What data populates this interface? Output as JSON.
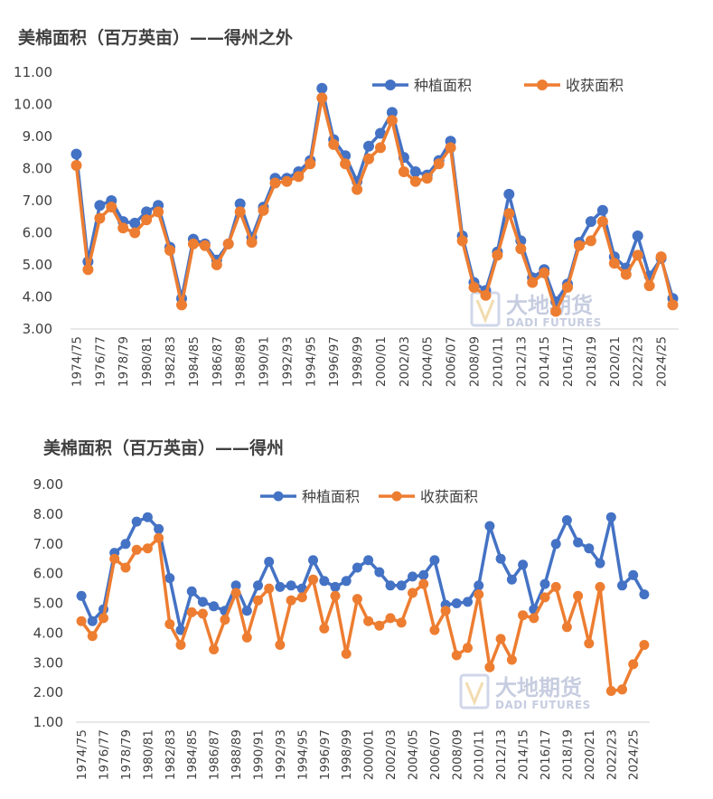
{
  "watermark": {
    "name": "大地期货",
    "sub": "DADI FUTURES"
  },
  "chart_data": [
    {
      "type": "line",
      "title": "美棉面积（百万英亩）——得州之外",
      "ylim": [
        3,
        11
      ],
      "yticks": [
        "3.00",
        "4.00",
        "5.00",
        "6.00",
        "7.00",
        "8.00",
        "9.00",
        "10.00",
        "11.00"
      ],
      "x_tick_labels": [
        "1974/75",
        "1976/77",
        "1978/79",
        "1980/81",
        "1982/83",
        "1984/85",
        "1986/87",
        "1988/89",
        "1990/91",
        "1992/93",
        "1994/95",
        "1996/97",
        "1998/99",
        "2000/01",
        "2002/03",
        "2004/05",
        "2006/07",
        "2008/09",
        "2010/11",
        "2012/13",
        "2014/15",
        "2016/17",
        "2018/19",
        "2020/21",
        "2022/23",
        "2024/25"
      ],
      "legend_position": "top-right",
      "series": [
        {
          "name": "种植面积",
          "color": "#4472C4",
          "values": [
            8.45,
            5.1,
            6.85,
            7.0,
            6.35,
            6.3,
            6.65,
            6.85,
            5.55,
            3.95,
            5.8,
            5.65,
            5.15,
            5.65,
            6.9,
            5.85,
            6.8,
            7.7,
            7.7,
            7.9,
            8.25,
            10.5,
            8.9,
            8.4,
            7.6,
            8.7,
            9.1,
            9.75,
            8.35,
            7.9,
            7.8,
            8.25,
            8.85,
            5.9,
            4.45,
            4.2,
            5.4,
            7.2,
            5.75,
            4.6,
            4.85,
            3.85,
            4.4,
            5.7,
            6.35,
            6.7,
            5.25,
            4.9,
            5.9,
            4.65,
            5.2,
            3.95
          ]
        },
        {
          "name": "收获面积",
          "color": "#ED7D31",
          "values": [
            8.1,
            4.85,
            6.45,
            6.8,
            6.15,
            6.0,
            6.4,
            6.65,
            5.45,
            3.75,
            5.65,
            5.6,
            5.0,
            5.65,
            6.65,
            5.7,
            6.7,
            7.55,
            7.6,
            7.75,
            8.15,
            10.2,
            8.75,
            8.15,
            7.35,
            8.3,
            8.65,
            9.5,
            7.9,
            7.6,
            7.7,
            8.15,
            8.65,
            5.75,
            4.3,
            4.05,
            5.3,
            6.6,
            5.5,
            4.45,
            4.75,
            3.55,
            4.3,
            5.6,
            5.75,
            6.35,
            5.05,
            4.7,
            5.3,
            4.35,
            5.25,
            3.75
          ]
        }
      ]
    },
    {
      "type": "line",
      "title": "美棉面积（百万英亩）——得州",
      "ylim": [
        1,
        9
      ],
      "yticks": [
        "1.00",
        "2.00",
        "3.00",
        "4.00",
        "5.00",
        "6.00",
        "7.00",
        "8.00",
        "9.00"
      ],
      "x_tick_labels": [
        "1974/75",
        "1976/77",
        "1978/79",
        "1980/81",
        "1982/83",
        "1984/85",
        "1986/87",
        "1988/89",
        "1990/91",
        "1992/93",
        "1994/95",
        "1996/97",
        "1998/99",
        "2000/01",
        "2002/03",
        "2004/05",
        "2006/07",
        "2008/09",
        "2010/11",
        "2012/13",
        "2014/15",
        "2016/17",
        "2018/19",
        "2020/21",
        "2022/23",
        "2024/25"
      ],
      "legend_position": "top-center",
      "series": [
        {
          "name": "种植面积",
          "color": "#4472C4",
          "values": [
            5.25,
            4.4,
            4.8,
            6.7,
            7.0,
            7.75,
            7.9,
            7.5,
            5.85,
            4.1,
            5.4,
            5.05,
            4.9,
            4.75,
            5.6,
            4.75,
            5.6,
            6.4,
            5.55,
            5.6,
            5.5,
            6.45,
            5.75,
            5.55,
            5.75,
            6.2,
            6.45,
            6.05,
            5.6,
            5.6,
            5.9,
            5.95,
            6.45,
            4.95,
            5.0,
            5.05,
            5.6,
            7.6,
            6.5,
            5.8,
            6.3,
            4.8,
            5.65,
            7.0,
            7.8,
            7.05,
            6.85,
            6.35,
            7.9,
            5.6,
            5.95,
            5.3
          ]
        },
        {
          "name": "收获面积",
          "color": "#ED7D31",
          "values": [
            4.4,
            3.9,
            4.5,
            6.5,
            6.2,
            6.8,
            6.85,
            7.2,
            4.3,
            3.6,
            4.7,
            4.65,
            3.45,
            4.45,
            5.35,
            3.85,
            5.1,
            5.5,
            3.6,
            5.1,
            5.2,
            5.8,
            4.15,
            5.25,
            3.3,
            5.15,
            4.4,
            4.25,
            4.5,
            4.35,
            5.35,
            5.65,
            4.1,
            4.75,
            3.25,
            3.5,
            5.3,
            2.85,
            3.8,
            3.1,
            4.6,
            4.5,
            5.2,
            5.55,
            4.2,
            5.25,
            3.65,
            5.55,
            2.05,
            2.1,
            2.95,
            3.6
          ]
        }
      ]
    }
  ]
}
